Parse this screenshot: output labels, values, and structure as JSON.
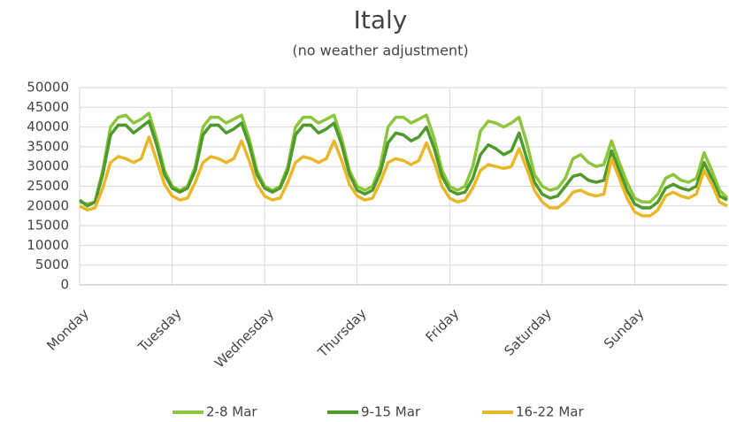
{
  "chart_data": {
    "type": "line",
    "title": "Italy",
    "subtitle": "(no weather adjustment)",
    "x": [
      0,
      2,
      4,
      6,
      8,
      10,
      12,
      14,
      16,
      18,
      20,
      22,
      24,
      26,
      28,
      30,
      32,
      34,
      36,
      38,
      40,
      42,
      44,
      46,
      48,
      50,
      52,
      54,
      56,
      58,
      60,
      62,
      64,
      66,
      68,
      70,
      72,
      74,
      76,
      78,
      80,
      82,
      84,
      86,
      88,
      90,
      92,
      94,
      96,
      98,
      100,
      102,
      104,
      106,
      108,
      110,
      112,
      114,
      116,
      118,
      120,
      122,
      124,
      126,
      128,
      130,
      132,
      134,
      136,
      138,
      140,
      142,
      144,
      146,
      148,
      150,
      152,
      154,
      156,
      158,
      160,
      162,
      164,
      166,
      168
    ],
    "xlim": [
      0,
      168
    ],
    "xticks": [
      {
        "value": 0,
        "label": "Monday"
      },
      {
        "value": 24,
        "label": "Tuesday"
      },
      {
        "value": 48,
        "label": "Wednesday"
      },
      {
        "value": 72,
        "label": "Thursday"
      },
      {
        "value": 96,
        "label": "Friday"
      },
      {
        "value": 120,
        "label": "Saturday"
      },
      {
        "value": 144,
        "label": "Sunday"
      }
    ],
    "ylim": [
      0,
      50000
    ],
    "yticks": [
      0,
      5000,
      10000,
      15000,
      20000,
      25000,
      30000,
      35000,
      40000,
      45000,
      50000
    ],
    "grid": true,
    "legend": "bottom",
    "series": [
      {
        "name": "2-8 Mar",
        "color": "#8cc63f",
        "values": [
          21000,
          20500,
          21000,
          29000,
          40000,
          42500,
          43000,
          41000,
          42000,
          43500,
          37000,
          29000,
          25000,
          24000,
          25000,
          30000,
          40000,
          42500,
          42500,
          41000,
          42000,
          43000,
          37000,
          29000,
          25000,
          24000,
          25000,
          30000,
          40000,
          42500,
          42500,
          41000,
          42000,
          43000,
          37000,
          29000,
          25000,
          24000,
          25000,
          30000,
          40000,
          42500,
          42500,
          41000,
          42000,
          43000,
          37000,
          29000,
          25000,
          24000,
          25000,
          30000,
          39000,
          41500,
          41000,
          40000,
          41000,
          42500,
          36000,
          28000,
          25000,
          24000,
          24500,
          27000,
          32000,
          33000,
          31000,
          30000,
          30500,
          36500,
          31000,
          26000,
          22000,
          21000,
          21000,
          23000,
          27000,
          28000,
          26500,
          26000,
          27000,
          33500,
          29000,
          24000,
          22000
        ]
      },
      {
        "name": "9-15 Mar",
        "color": "#4e9a2a",
        "values": [
          21500,
          20000,
          21000,
          28000,
          38000,
          40500,
          40500,
          38500,
          40000,
          41500,
          35500,
          28000,
          24500,
          23500,
          24500,
          29000,
          38000,
          40500,
          40500,
          38500,
          39500,
          41000,
          35500,
          28000,
          24500,
          23500,
          24500,
          29000,
          38000,
          40500,
          40500,
          38500,
          39500,
          41000,
          35500,
          28000,
          24000,
          23000,
          24000,
          28500,
          36000,
          38500,
          38000,
          36500,
          37500,
          40000,
          34500,
          27500,
          24000,
          23000,
          23500,
          27000,
          33000,
          35500,
          34500,
          33000,
          34000,
          38500,
          32000,
          26000,
          23000,
          22000,
          22500,
          25000,
          27500,
          28000,
          26500,
          26000,
          26500,
          34000,
          29000,
          24000,
          20500,
          19500,
          19500,
          21000,
          24500,
          25500,
          24500,
          24000,
          25000,
          31000,
          27000,
          22500,
          21500
        ]
      },
      {
        "name": "16-22 Mar",
        "color": "#e8b828",
        "values": [
          20000,
          19000,
          19500,
          24500,
          31000,
          32500,
          32000,
          31000,
          32000,
          37500,
          31500,
          25500,
          22500,
          21500,
          22000,
          26000,
          31000,
          32500,
          32000,
          31000,
          32000,
          36500,
          31500,
          25500,
          22500,
          21500,
          22000,
          26000,
          31000,
          32500,
          32000,
          31000,
          32000,
          36500,
          31500,
          25500,
          22500,
          21500,
          22000,
          26000,
          31000,
          32000,
          31500,
          30500,
          31500,
          36000,
          31000,
          25000,
          22000,
          21000,
          21500,
          24500,
          29000,
          30500,
          30000,
          29500,
          30000,
          34500,
          29500,
          24000,
          21000,
          19500,
          19500,
          21000,
          23500,
          24000,
          23000,
          22500,
          23000,
          32000,
          27000,
          22000,
          18500,
          17500,
          17500,
          19000,
          22500,
          23500,
          22500,
          22000,
          23000,
          29000,
          25500,
          21000,
          20000
        ]
      }
    ]
  }
}
